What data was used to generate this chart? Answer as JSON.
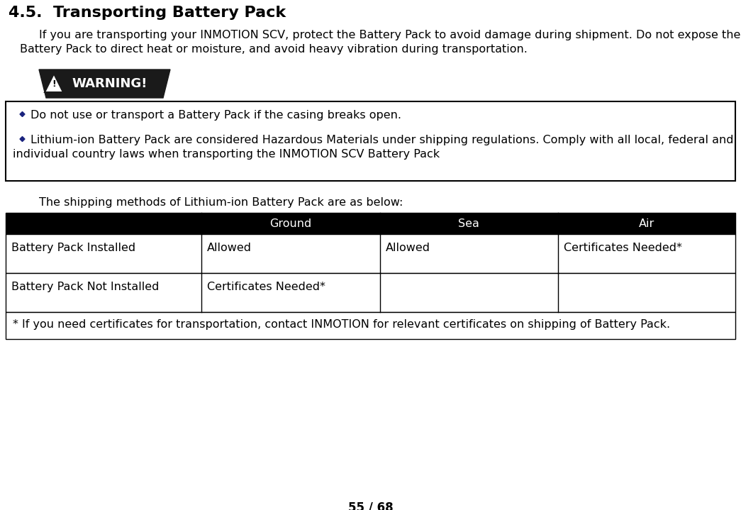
{
  "title": "4.5.  Transporting Battery Pack",
  "body_line1": "If you are transporting your INMOTION SCV, protect the Battery Pack to avoid damage during shipment. Do not expose the",
  "body_line2": "Battery Pack to direct heat or moisture, and avoid heavy vibration during transportation.",
  "warning_bullets": [
    "Do not use or transport a Battery Pack if the casing breaks open.",
    "Lithium-ion Battery Pack are considered Hazardous Materials under shipping regulations. Comply with all local, federal and",
    "individual country laws when transporting the INMOTION SCV Battery Pack"
  ],
  "shipping_intro": "The shipping methods of Lithium-ion Battery Pack are as below:",
  "table_headers": [
    "Ground",
    "Sea",
    "Air"
  ],
  "table_row1_label": "Battery Pack Installed",
  "table_row1_ground": "Allowed",
  "table_row1_sea": "Allowed",
  "table_row1_air": "Certificates Needed*",
  "table_row2_label": "Battery Pack Not Installed",
  "table_row2_ground": "Certificates Needed*",
  "footnote": "* If you need certificates for transportation, contact INMOTION for relevant certificates on shipping of Battery Pack.",
  "page_number": "55 / 68",
  "bg_color": "#ffffff",
  "text_color": "#000000",
  "table_header_bg": "#000000",
  "table_header_fg": "#ffffff",
  "warning_box_border": "#000000",
  "warning_box_bg": "#ffffff",
  "bullet_color": "#1a237e",
  "title_fontsize": 16,
  "body_fontsize": 11.5,
  "table_fontsize": 11.5,
  "warn_badge_color": "#1a1a1a",
  "warn_text_color": "#ffffff"
}
